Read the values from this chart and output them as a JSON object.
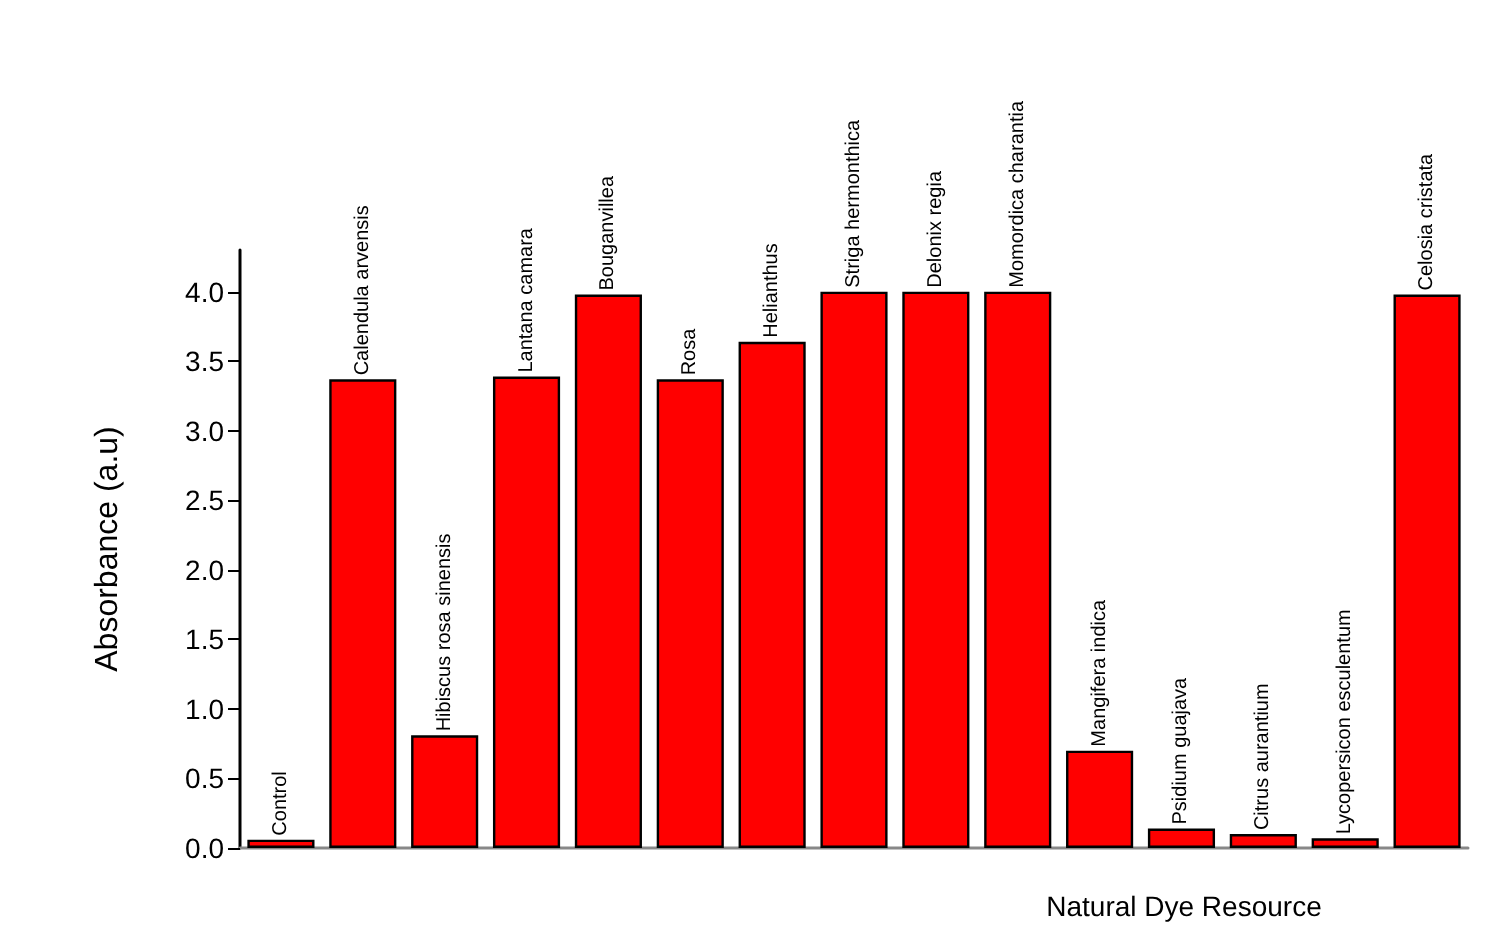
{
  "chart_data": {
    "type": "bar",
    "xlabel": "Natural Dye Resource",
    "ylabel": "Absorbance (a.u)",
    "categories": [
      "Control",
      "Calendula arvensis",
      "Hibiscus rosa sinensis",
      "Lantana camara",
      "Bouganvillea",
      "Rosa",
      "Helianthus",
      "Striga hermonthica",
      "Delonix regia",
      "Momordica charantia",
      "Mangifera indica",
      "Psidium guajava",
      "Citrus aurantium",
      "Lycopersicon esculentum",
      "Celosia cristata"
    ],
    "values": [
      0.06,
      3.37,
      0.81,
      3.39,
      3.98,
      3.37,
      3.64,
      4.0,
      4.0,
      4.0,
      0.7,
      0.14,
      0.1,
      0.07,
      3.98
    ],
    "color": "#ff0000",
    "ylim": [
      0,
      4.3
    ],
    "yticks": [
      {
        "value": 0,
        "label": "0.0"
      },
      {
        "value": 0.5,
        "label": "0.5"
      },
      {
        "value": 1,
        "label": "1.0"
      },
      {
        "value": 1.5,
        "label": "1.5"
      },
      {
        "value": 2,
        "label": "2.0"
      },
      {
        "value": 2.5,
        "label": "2.5"
      },
      {
        "value": 3,
        "label": "3.0"
      },
      {
        "value": 3.5,
        "label": "3.5"
      },
      {
        "value": 4,
        "label": "4.0"
      }
    ],
    "grid": false
  }
}
